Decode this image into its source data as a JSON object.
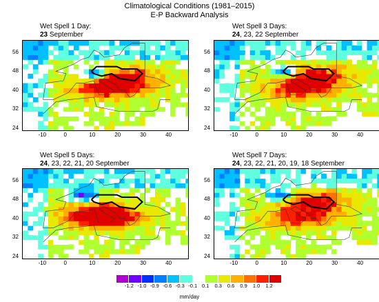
{
  "figure": {
    "title_line1": "Climatological Conditions (1981–2015)",
    "title_line2": "E-P Backward Analysis"
  },
  "chart_data": [
    {
      "type": "heatmap",
      "title_bold": "",
      "title_prefix": "Wet Spell 1 Day:",
      "title_days_bold": "23",
      "title_days_rest": " September",
      "xlim": [
        -18,
        47
      ],
      "ylim": [
        23,
        61
      ],
      "xticks": [
        -10,
        0,
        10,
        20,
        30,
        40
      ],
      "yticks": [
        24,
        32,
        40,
        48,
        56
      ],
      "hotspot": [
        22,
        45
      ],
      "negative_blob": [
        10,
        47
      ]
    },
    {
      "type": "heatmap",
      "title_prefix": "Wet Spell 3 Days:",
      "title_days_bold": "24",
      "title_days_rest": ", 23, 22 September",
      "xlim": [
        -18,
        47
      ],
      "ylim": [
        23,
        61
      ],
      "xticks": [
        -10,
        0,
        10,
        20,
        30,
        40
      ],
      "yticks": [
        24,
        32,
        40,
        48,
        56
      ],
      "hotspot": [
        22,
        46
      ],
      "negative_blob": [
        10,
        48
      ]
    },
    {
      "type": "heatmap",
      "title_prefix": "Wet Spell 5 Days:",
      "title_days_bold": "24",
      "title_days_rest": ", 23, 22, 21, 20 September",
      "xlim": [
        -18,
        47
      ],
      "ylim": [
        23,
        61
      ],
      "xticks": [
        -10,
        0,
        10,
        20,
        30,
        40
      ],
      "yticks": [
        24,
        32,
        40,
        48,
        56
      ],
      "hotspot": [
        12,
        42
      ],
      "negative_blob": [
        6,
        50
      ]
    },
    {
      "type": "heatmap",
      "title_prefix": "Wet Spell 7 Days:",
      "title_days_bold": "24",
      "title_days_rest": ", 23, 22, 21, 20, 19, 18 September",
      "xlim": [
        -18,
        47
      ],
      "ylim": [
        23,
        61
      ],
      "xticks": [
        -10,
        0,
        10,
        20,
        30,
        40
      ],
      "yticks": [
        24,
        32,
        40,
        48,
        56
      ],
      "hotspot": [
        22,
        47
      ],
      "negative_blob": [
        8,
        50
      ]
    }
  ],
  "colorbar": {
    "labels": [
      "-1.2",
      "-1.0",
      "-0.9",
      "-0.6",
      "-0.3",
      "-0.1",
      "0.1",
      "0.3",
      "0.6",
      "0.9",
      "1.0",
      "1.2"
    ],
    "colors": [
      "#b000d0",
      "#7000ff",
      "#0030ff",
      "#0080ff",
      "#00c0ff",
      "#60ffe0",
      "#ffffff",
      "#b0ff30",
      "#e8e800",
      "#ffb000",
      "#ff7000",
      "#ff2000",
      "#e00000"
    ],
    "unit": "mm/day"
  }
}
